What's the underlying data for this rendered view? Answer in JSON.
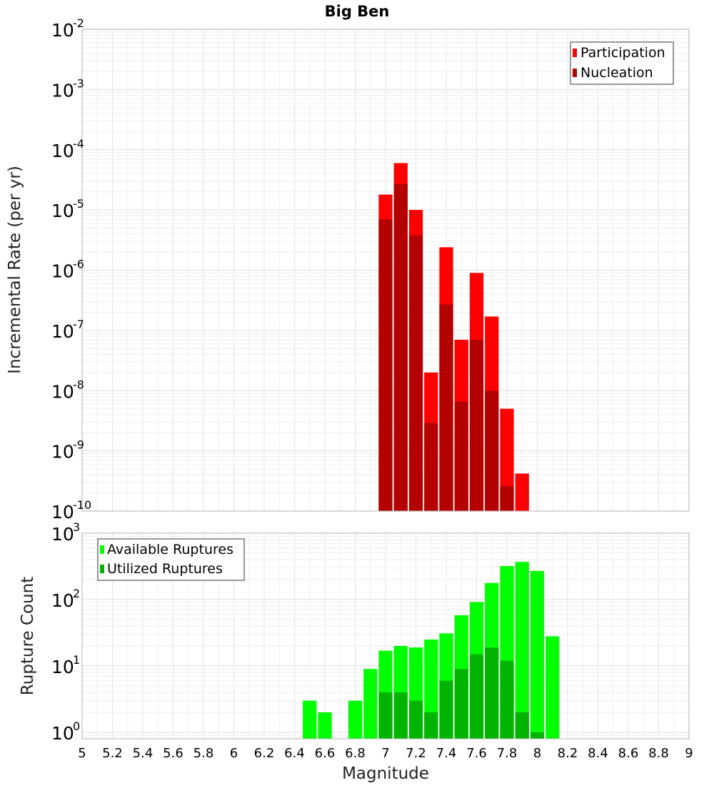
{
  "chart_data": [
    {
      "type": "bar",
      "title": "Big Ben",
      "xlabel": "",
      "ylabel": "Incremental Rate (per yr)",
      "yscale": "log",
      "xlim": [
        5,
        9
      ],
      "ylim": [
        1e-10,
        0.01
      ],
      "ytick_exponents": [
        "-10",
        "-9",
        "-8",
        "-7",
        "-6",
        "-5",
        "-4",
        "-3",
        "-2"
      ],
      "grid": true,
      "legend_position": "top-right",
      "bar_width": 0.1,
      "x": [
        7.0,
        7.1,
        7.2,
        7.3,
        7.4,
        7.5,
        7.6,
        7.7,
        7.8,
        7.9
      ],
      "series": [
        {
          "name": "Participation",
          "color": "#ff0000",
          "values": [
            1.8e-05,
            6e-05,
            1e-05,
            2e-08,
            2.4e-06,
            7e-08,
            9e-07,
            1.7e-07,
            5e-09,
            4.2e-10
          ]
        },
        {
          "name": "Nucleation",
          "color": "#b40000",
          "values": [
            7e-06,
            2.7e-05,
            3.8e-06,
            2.9e-09,
            2.7e-07,
            6.5e-09,
            7e-08,
            1e-08,
            2.6e-10,
            null
          ]
        }
      ]
    },
    {
      "type": "bar",
      "title": "",
      "xlabel": "Magnitude",
      "ylabel": "Rupture Count",
      "yscale": "log",
      "xlim": [
        5,
        9
      ],
      "ylim": [
        0.8,
        1000
      ],
      "ytick_exponents": [
        "0",
        "1",
        "2",
        "3"
      ],
      "xticks": [
        "5",
        "5.2",
        "5.4",
        "5.6",
        "5.8",
        "6",
        "6.2",
        "6.4",
        "6.6",
        "6.8",
        "7",
        "7.2",
        "7.4",
        "7.6",
        "7.8",
        "8",
        "8.2",
        "8.4",
        "8.6",
        "8.8",
        "9"
      ],
      "grid": true,
      "legend_position": "top-left",
      "bar_width": 0.1,
      "x": [
        6.5,
        6.6,
        6.7,
        6.8,
        6.9,
        7.0,
        7.1,
        7.2,
        7.3,
        7.4,
        7.5,
        7.6,
        7.7,
        7.8,
        7.9,
        8.0,
        8.1
      ],
      "series": [
        {
          "name": "Available Ruptures",
          "color": "#00ff00",
          "values": [
            3,
            2,
            null,
            3,
            9,
            17,
            20,
            19,
            25,
            31,
            58,
            92,
            178,
            320,
            370,
            270,
            28
          ]
        },
        {
          "name": "Utilized Ruptures",
          "color": "#00b400",
          "values": [
            null,
            null,
            null,
            null,
            null,
            4,
            4,
            3,
            2,
            6,
            9,
            15,
            19,
            12,
            2,
            1,
            null
          ]
        }
      ]
    }
  ]
}
